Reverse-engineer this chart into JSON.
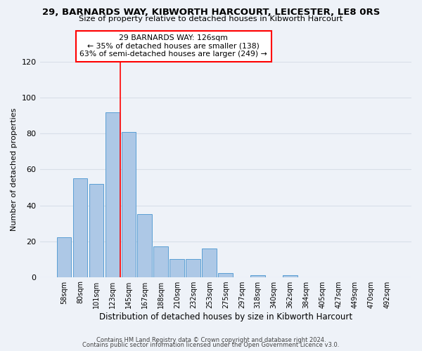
{
  "title1": "29, BARNARDS WAY, KIBWORTH HARCOURT, LEICESTER, LE8 0RS",
  "title2": "Size of property relative to detached houses in Kibworth Harcourt",
  "xlabel": "Distribution of detached houses by size in Kibworth Harcourt",
  "ylabel": "Number of detached properties",
  "bin_labels": [
    "58sqm",
    "80sqm",
    "101sqm",
    "123sqm",
    "145sqm",
    "167sqm",
    "188sqm",
    "210sqm",
    "232sqm",
    "253sqm",
    "275sqm",
    "297sqm",
    "318sqm",
    "340sqm",
    "362sqm",
    "384sqm",
    "405sqm",
    "427sqm",
    "449sqm",
    "470sqm",
    "492sqm"
  ],
  "bar_values": [
    22,
    55,
    52,
    92,
    81,
    35,
    17,
    10,
    10,
    16,
    2,
    0,
    1,
    0,
    1,
    0,
    0,
    0,
    0,
    0,
    0
  ],
  "bar_color": "#adc8e6",
  "bar_edge_color": "#5a9fd4",
  "annotation_line1": "29 BARNARDS WAY: 126sqm",
  "annotation_line2": "← 35% of detached houses are smaller (138)",
  "annotation_line3": "63% of semi-detached houses are larger (249) →",
  "annotation_box_color": "white",
  "annotation_box_edge_color": "red",
  "vertical_line_x": 4,
  "ylim": [
    0,
    120
  ],
  "yticks": [
    0,
    20,
    40,
    60,
    80,
    100,
    120
  ],
  "footer1": "Contains HM Land Registry data © Crown copyright and database right 2024.",
  "footer2": "Contains public sector information licensed under the Open Government Licence v3.0.",
  "background_color": "#eef2f8",
  "grid_color": "#d8dfe8"
}
